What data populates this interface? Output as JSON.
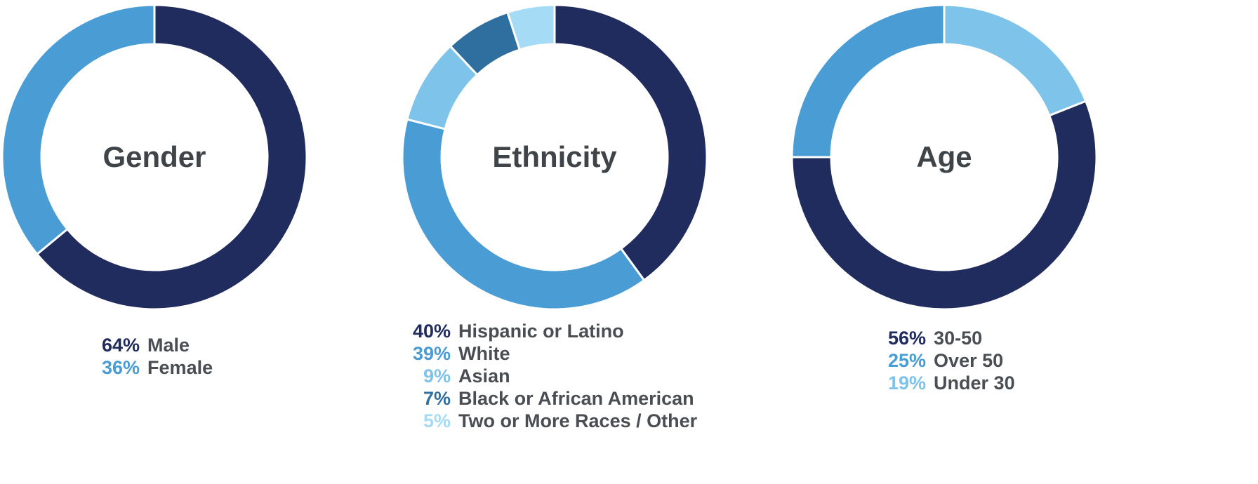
{
  "page": {
    "background": "#ffffff",
    "text_color": "#4a4e53",
    "title_color": "#3f4448"
  },
  "chart_data": [
    {
      "type": "pie",
      "variant": "donut",
      "title": "Gender",
      "start_angle_deg": -90,
      "clockwise": true,
      "legend_position": "below",
      "slices": [
        {
          "label": "Male",
          "value": 64,
          "color": "#202b5e"
        },
        {
          "label": "Female",
          "value": 36,
          "color": "#4a9cd5"
        }
      ],
      "draw_order": [
        0,
        1
      ]
    },
    {
      "type": "pie",
      "variant": "donut",
      "title": "Ethnicity",
      "start_angle_deg": -90,
      "clockwise": true,
      "legend_position": "below",
      "slices": [
        {
          "label": "Hispanic or Latino",
          "value": 40,
          "color": "#202b5e"
        },
        {
          "label": "White",
          "value": 39,
          "color": "#4a9cd5"
        },
        {
          "label": "Asian",
          "value": 9,
          "color": "#7ec3ea"
        },
        {
          "label": "Black or African American",
          "value": 7,
          "color": "#2f6fa0"
        },
        {
          "label": "Two or More Races / Other",
          "value": 5,
          "color": "#a6dbf5"
        }
      ],
      "draw_order": [
        0,
        1,
        2,
        3,
        4
      ]
    },
    {
      "type": "pie",
      "variant": "donut",
      "title": "Age",
      "start_angle_deg": -90,
      "clockwise": true,
      "legend_position": "below",
      "slices": [
        {
          "label": "30-50",
          "value": 56,
          "color": "#202b5e"
        },
        {
          "label": "Over 50",
          "value": 25,
          "color": "#4a9cd5"
        },
        {
          "label": "Under 30",
          "value": 19,
          "color": "#7ec3ea"
        }
      ],
      "draw_order": [
        2,
        0,
        1
      ]
    }
  ]
}
